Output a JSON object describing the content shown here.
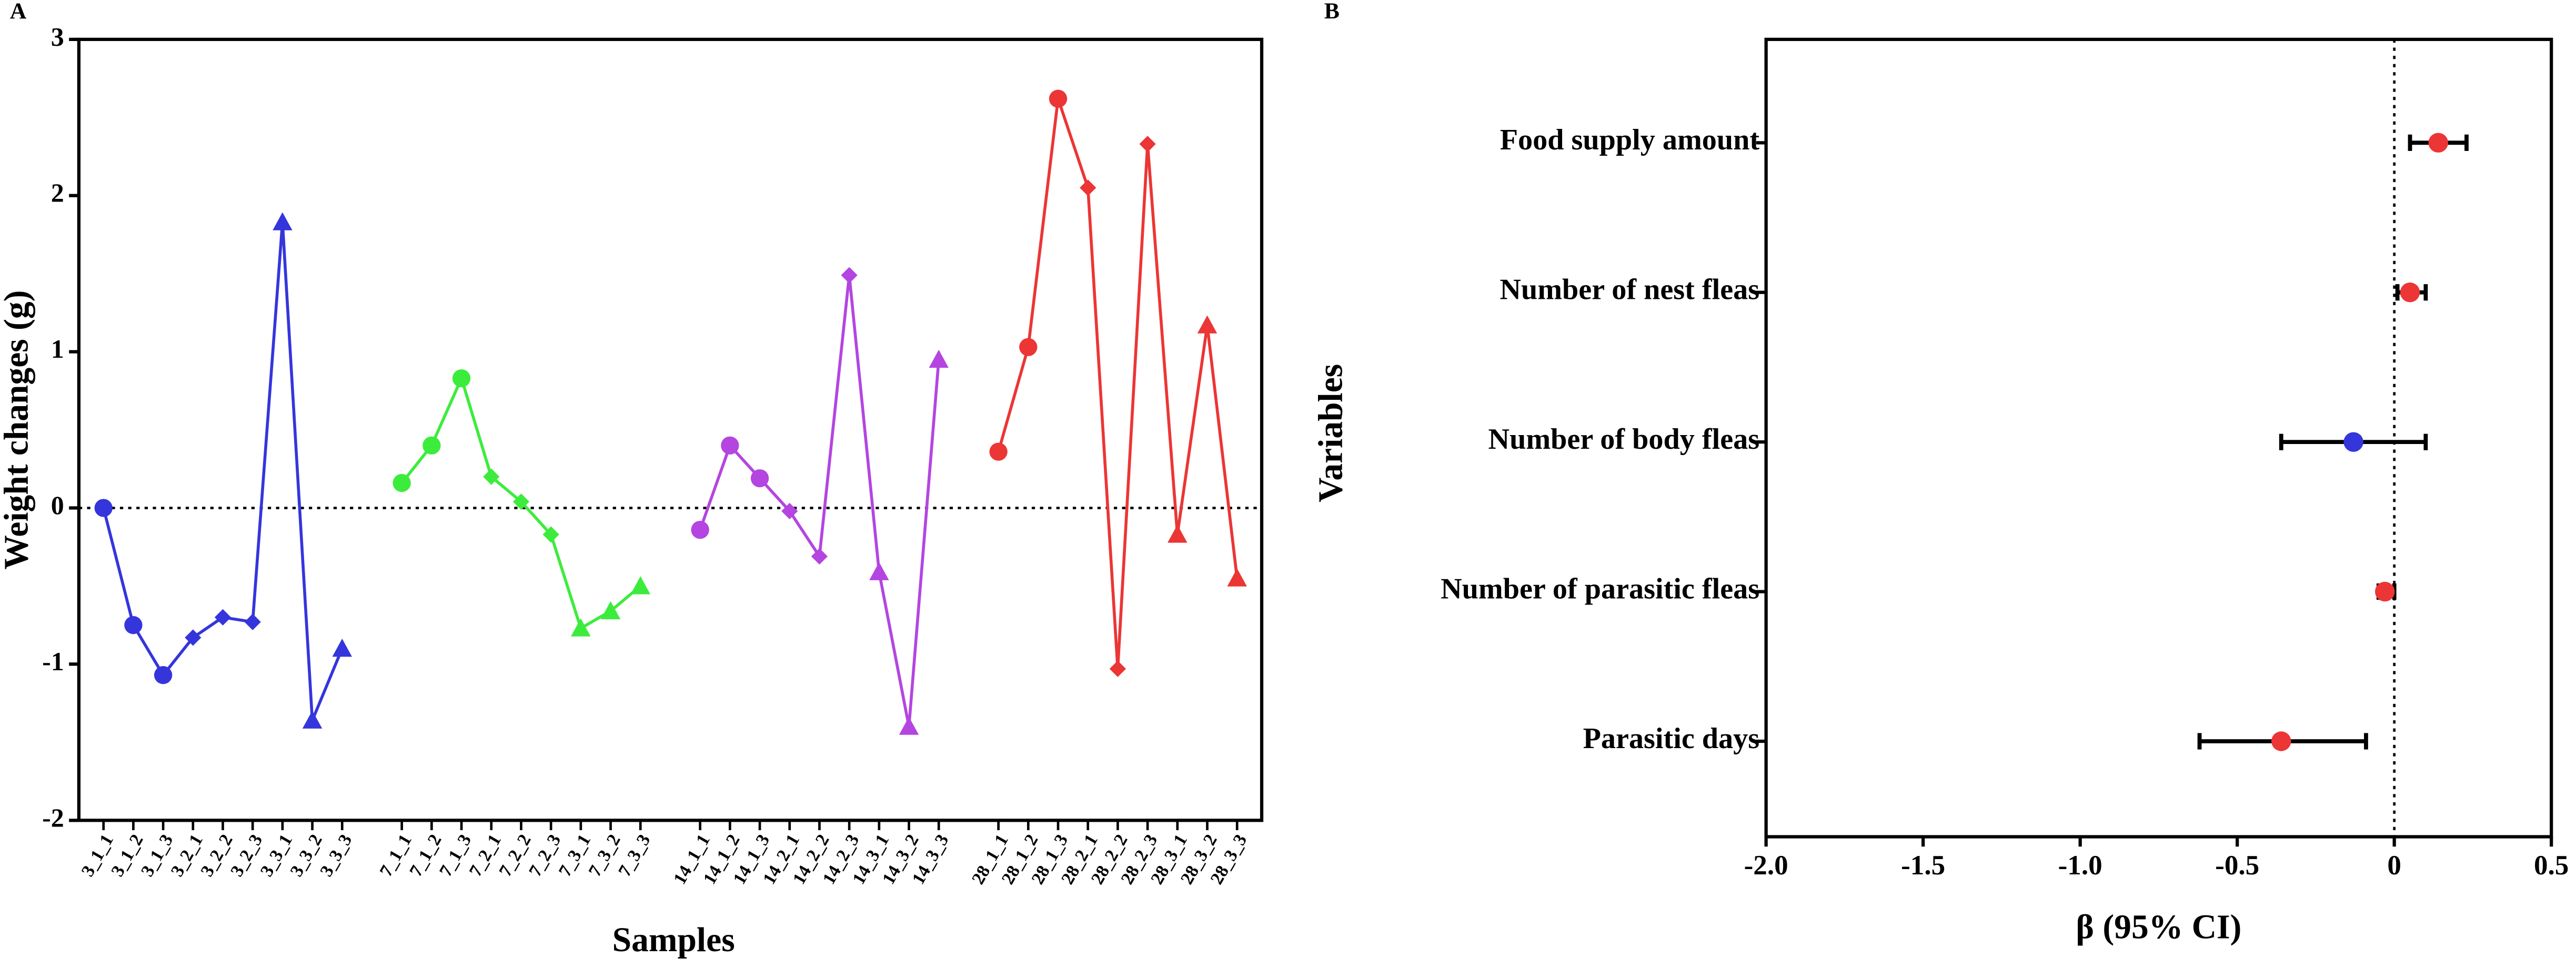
{
  "chart_data": [
    {
      "type": "line",
      "panel": "A",
      "ylabel": "Weight changes (g)",
      "xlabel": "Samples",
      "categories": [
        "3_1_1",
        "3_1_2",
        "3_1_3",
        "3_2_1",
        "3_2_2",
        "3_2_3",
        "3_3_1",
        "3_3_2",
        "3_3_3",
        null,
        "7_1_1",
        "7_1_2",
        "7_1_3",
        "7_2_1",
        "7_2_2",
        "7_2_3",
        "7_3_1",
        "7_3_2",
        "7_3_3",
        null,
        "14_1_1",
        "14_1_2",
        "14_1_3",
        "14_2_1",
        "14_2_2",
        "14_2_3",
        "14_3_1",
        "14_3_2",
        "14_3_3",
        null,
        "28_1_1",
        "28_1_2",
        "28_1_3",
        "28_2_1",
        "28_2_2",
        "28_2_3",
        "28_3_1",
        "28_3_2",
        "28_3_3"
      ],
      "markers": [
        "circle",
        "circle",
        "circle",
        "diamond",
        "diamond",
        "diamond",
        "triangle",
        "triangle",
        "triangle",
        null,
        "circle",
        "circle",
        "circle",
        "diamond",
        "diamond",
        "diamond",
        "triangle",
        "triangle",
        "triangle",
        null,
        "circle",
        "circle",
        "circle",
        "diamond",
        "diamond",
        "diamond",
        "triangle",
        "triangle",
        "triangle",
        null,
        "circle",
        "circle",
        "circle",
        "diamond",
        "diamond",
        "diamond",
        "triangle",
        "triangle",
        "triangle"
      ],
      "series": [
        {
          "color": "#3535dc",
          "values": [
            0,
            -0.75,
            -1.07,
            -0.83,
            -0.7,
            -0.73,
            1.83,
            -1.36,
            -0.9,
            null,
            null,
            null,
            null,
            null,
            null,
            null,
            null,
            null,
            null,
            null,
            null,
            null,
            null,
            null,
            null,
            null,
            null,
            null,
            null,
            null,
            null,
            null,
            null,
            null,
            null,
            null,
            null,
            null,
            null
          ]
        },
        {
          "color": "#3cec3c",
          "values": [
            null,
            null,
            null,
            null,
            null,
            null,
            null,
            null,
            null,
            null,
            0.16,
            0.4,
            0.83,
            0.2,
            0.04,
            -0.17,
            -0.77,
            -0.66,
            -0.5,
            null,
            null,
            null,
            null,
            null,
            null,
            null,
            null,
            null,
            null,
            null,
            null,
            null,
            null,
            null,
            null,
            null,
            null,
            null,
            null
          ]
        },
        {
          "color": "#b445e0",
          "values": [
            null,
            null,
            null,
            null,
            null,
            null,
            null,
            null,
            null,
            null,
            null,
            null,
            null,
            null,
            null,
            null,
            null,
            null,
            null,
            null,
            -0.14,
            0.4,
            0.19,
            -0.02,
            -0.31,
            1.49,
            -0.41,
            -1.4,
            0.95,
            null,
            null,
            null,
            null,
            null,
            null,
            null,
            null,
            null,
            null
          ]
        },
        {
          "color": "#ec3535",
          "values": [
            null,
            null,
            null,
            null,
            null,
            null,
            null,
            null,
            null,
            null,
            null,
            null,
            null,
            null,
            null,
            null,
            null,
            null,
            null,
            null,
            null,
            null,
            null,
            null,
            null,
            null,
            null,
            null,
            null,
            null,
            0.36,
            1.03,
            2.62,
            2.05,
            -1.03,
            2.33,
            -0.17,
            1.17,
            -0.45
          ]
        }
      ],
      "ylim": [
        -2,
        3
      ],
      "yticks": [
        -2,
        -1,
        0,
        1,
        2,
        3
      ],
      "hline": 0
    },
    {
      "type": "forest",
      "panel": "B",
      "ylabel": "Variables",
      "xlabel": "β (95% CI)",
      "categories": [
        "Food supply amount",
        "Number of nest fleas",
        "Number of body fleas",
        "Number of parasitic fleas",
        "Parasitic days"
      ],
      "values": [
        0.14,
        0.05,
        -0.13,
        -0.03,
        -0.36
      ],
      "lower": [
        0.05,
        0.01,
        -0.36,
        -0.05,
        -0.62
      ],
      "upper": [
        0.23,
        0.1,
        0.1,
        0,
        -0.09
      ],
      "colors": [
        "#ec3535",
        "#ec3535",
        "#3535dc",
        "#ec3535",
        "#ec3535"
      ],
      "xlim": [
        -2,
        0.5
      ],
      "xticks": [
        {
          "value": -2,
          "label": "-2.0"
        },
        -1.5,
        {
          "value": -1,
          "label": "-1.0"
        },
        -0.5,
        0,
        0.5
      ],
      "vline": 0
    }
  ]
}
